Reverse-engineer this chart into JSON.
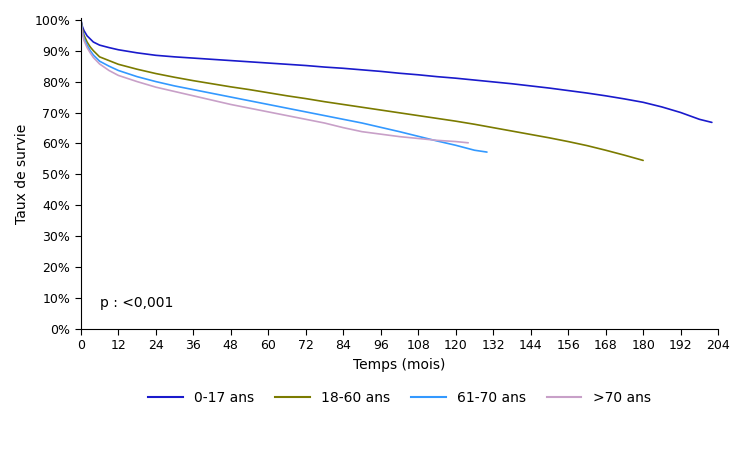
{
  "title": "",
  "xlabel": "Temps (mois)",
  "ylabel": "Taux de survie",
  "annotation": "p : <0,001",
  "xlim": [
    0,
    204
  ],
  "ylim": [
    0,
    1.005
  ],
  "xticks": [
    0,
    12,
    24,
    36,
    48,
    60,
    72,
    84,
    96,
    108,
    120,
    132,
    144,
    156,
    168,
    180,
    192,
    204
  ],
  "yticks": [
    0.0,
    0.1,
    0.2,
    0.3,
    0.4,
    0.5,
    0.6,
    0.7,
    0.8,
    0.9,
    1.0
  ],
  "ytick_labels": [
    "0%",
    "10%",
    "20%",
    "30%",
    "40%",
    "50%",
    "60%",
    "70%",
    "80%",
    "90%",
    "100%"
  ],
  "series": [
    {
      "label": "0-17 ans",
      "color": "#1a1acc",
      "linewidth": 1.2,
      "x": [
        0,
        0.5,
        1,
        2,
        3,
        4,
        6,
        9,
        12,
        18,
        24,
        30,
        36,
        42,
        48,
        54,
        60,
        66,
        72,
        78,
        84,
        90,
        96,
        102,
        108,
        114,
        120,
        126,
        132,
        138,
        144,
        150,
        156,
        162,
        168,
        174,
        180,
        186,
        192,
        198,
        202
      ],
      "y": [
        1.0,
        0.978,
        0.965,
        0.948,
        0.938,
        0.928,
        0.918,
        0.91,
        0.903,
        0.893,
        0.885,
        0.88,
        0.876,
        0.872,
        0.868,
        0.864,
        0.86,
        0.856,
        0.852,
        0.847,
        0.843,
        0.838,
        0.833,
        0.827,
        0.822,
        0.816,
        0.811,
        0.805,
        0.799,
        0.793,
        0.786,
        0.779,
        0.771,
        0.763,
        0.754,
        0.744,
        0.733,
        0.718,
        0.7,
        0.678,
        0.668
      ]
    },
    {
      "label": "18-60 ans",
      "color": "#7b7b00",
      "linewidth": 1.2,
      "x": [
        0,
        0.5,
        1,
        2,
        3,
        4,
        6,
        9,
        12,
        18,
        24,
        30,
        36,
        42,
        48,
        54,
        60,
        66,
        72,
        78,
        84,
        90,
        96,
        102,
        108,
        114,
        120,
        126,
        132,
        138,
        144,
        150,
        156,
        162,
        168,
        174,
        180
      ],
      "y": [
        1.0,
        0.97,
        0.95,
        0.928,
        0.912,
        0.9,
        0.88,
        0.868,
        0.856,
        0.84,
        0.826,
        0.814,
        0.803,
        0.793,
        0.783,
        0.774,
        0.764,
        0.754,
        0.745,
        0.735,
        0.726,
        0.717,
        0.708,
        0.699,
        0.69,
        0.681,
        0.672,
        0.662,
        0.651,
        0.64,
        0.629,
        0.618,
        0.606,
        0.593,
        0.578,
        0.562,
        0.545
      ]
    },
    {
      "label": "61-70 ans",
      "color": "#3399ff",
      "linewidth": 1.2,
      "x": [
        0,
        0.5,
        1,
        2,
        3,
        4,
        6,
        9,
        12,
        18,
        24,
        30,
        36,
        42,
        48,
        54,
        60,
        66,
        72,
        78,
        84,
        90,
        96,
        102,
        108,
        114,
        120,
        126,
        130
      ],
      "y": [
        1.0,
        0.962,
        0.94,
        0.918,
        0.9,
        0.886,
        0.866,
        0.85,
        0.836,
        0.816,
        0.8,
        0.786,
        0.774,
        0.762,
        0.75,
        0.738,
        0.726,
        0.714,
        0.702,
        0.69,
        0.678,
        0.666,
        0.652,
        0.638,
        0.623,
        0.608,
        0.594,
        0.578,
        0.572
      ]
    },
    {
      "label": ">70 ans",
      "color": "#c8a0c8",
      "linewidth": 1.2,
      "x": [
        0,
        0.5,
        1,
        2,
        3,
        4,
        6,
        9,
        12,
        18,
        24,
        30,
        36,
        42,
        48,
        54,
        60,
        66,
        72,
        78,
        84,
        90,
        96,
        102,
        108,
        114,
        120,
        124
      ],
      "y": [
        1.0,
        0.956,
        0.933,
        0.91,
        0.893,
        0.878,
        0.857,
        0.836,
        0.82,
        0.8,
        0.782,
        0.768,
        0.754,
        0.74,
        0.726,
        0.714,
        0.702,
        0.69,
        0.678,
        0.666,
        0.651,
        0.638,
        0.63,
        0.622,
        0.616,
        0.61,
        0.606,
        0.602
      ]
    }
  ],
  "background_color": "#ffffff",
  "fontsize": 10,
  "tick_fontsize": 9
}
